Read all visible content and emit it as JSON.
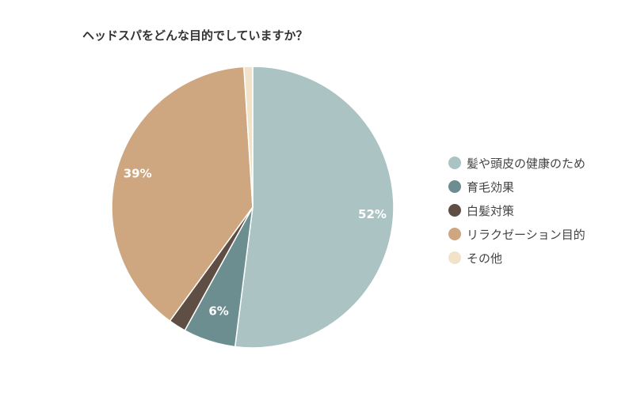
{
  "chart_data": {
    "type": "pie",
    "title": "ヘッドスパをどんな目的でしていますか？",
    "categories": [
      "髪や頭皮の健康のため",
      "育毛効果",
      "白髪対策",
      "リラクゼーション目的",
      "その他"
    ],
    "values": [
      52,
      6,
      2,
      39,
      1
    ],
    "data_labels": [
      "52%",
      "6%",
      "",
      "39%",
      ""
    ],
    "colors": [
      "#abc3c3",
      "#6d8e91",
      "#5f4e43",
      "#cea680",
      "#f2e2c9"
    ],
    "start_angle_deg": 0,
    "direction": "clockwise",
    "legend_position": "right"
  }
}
